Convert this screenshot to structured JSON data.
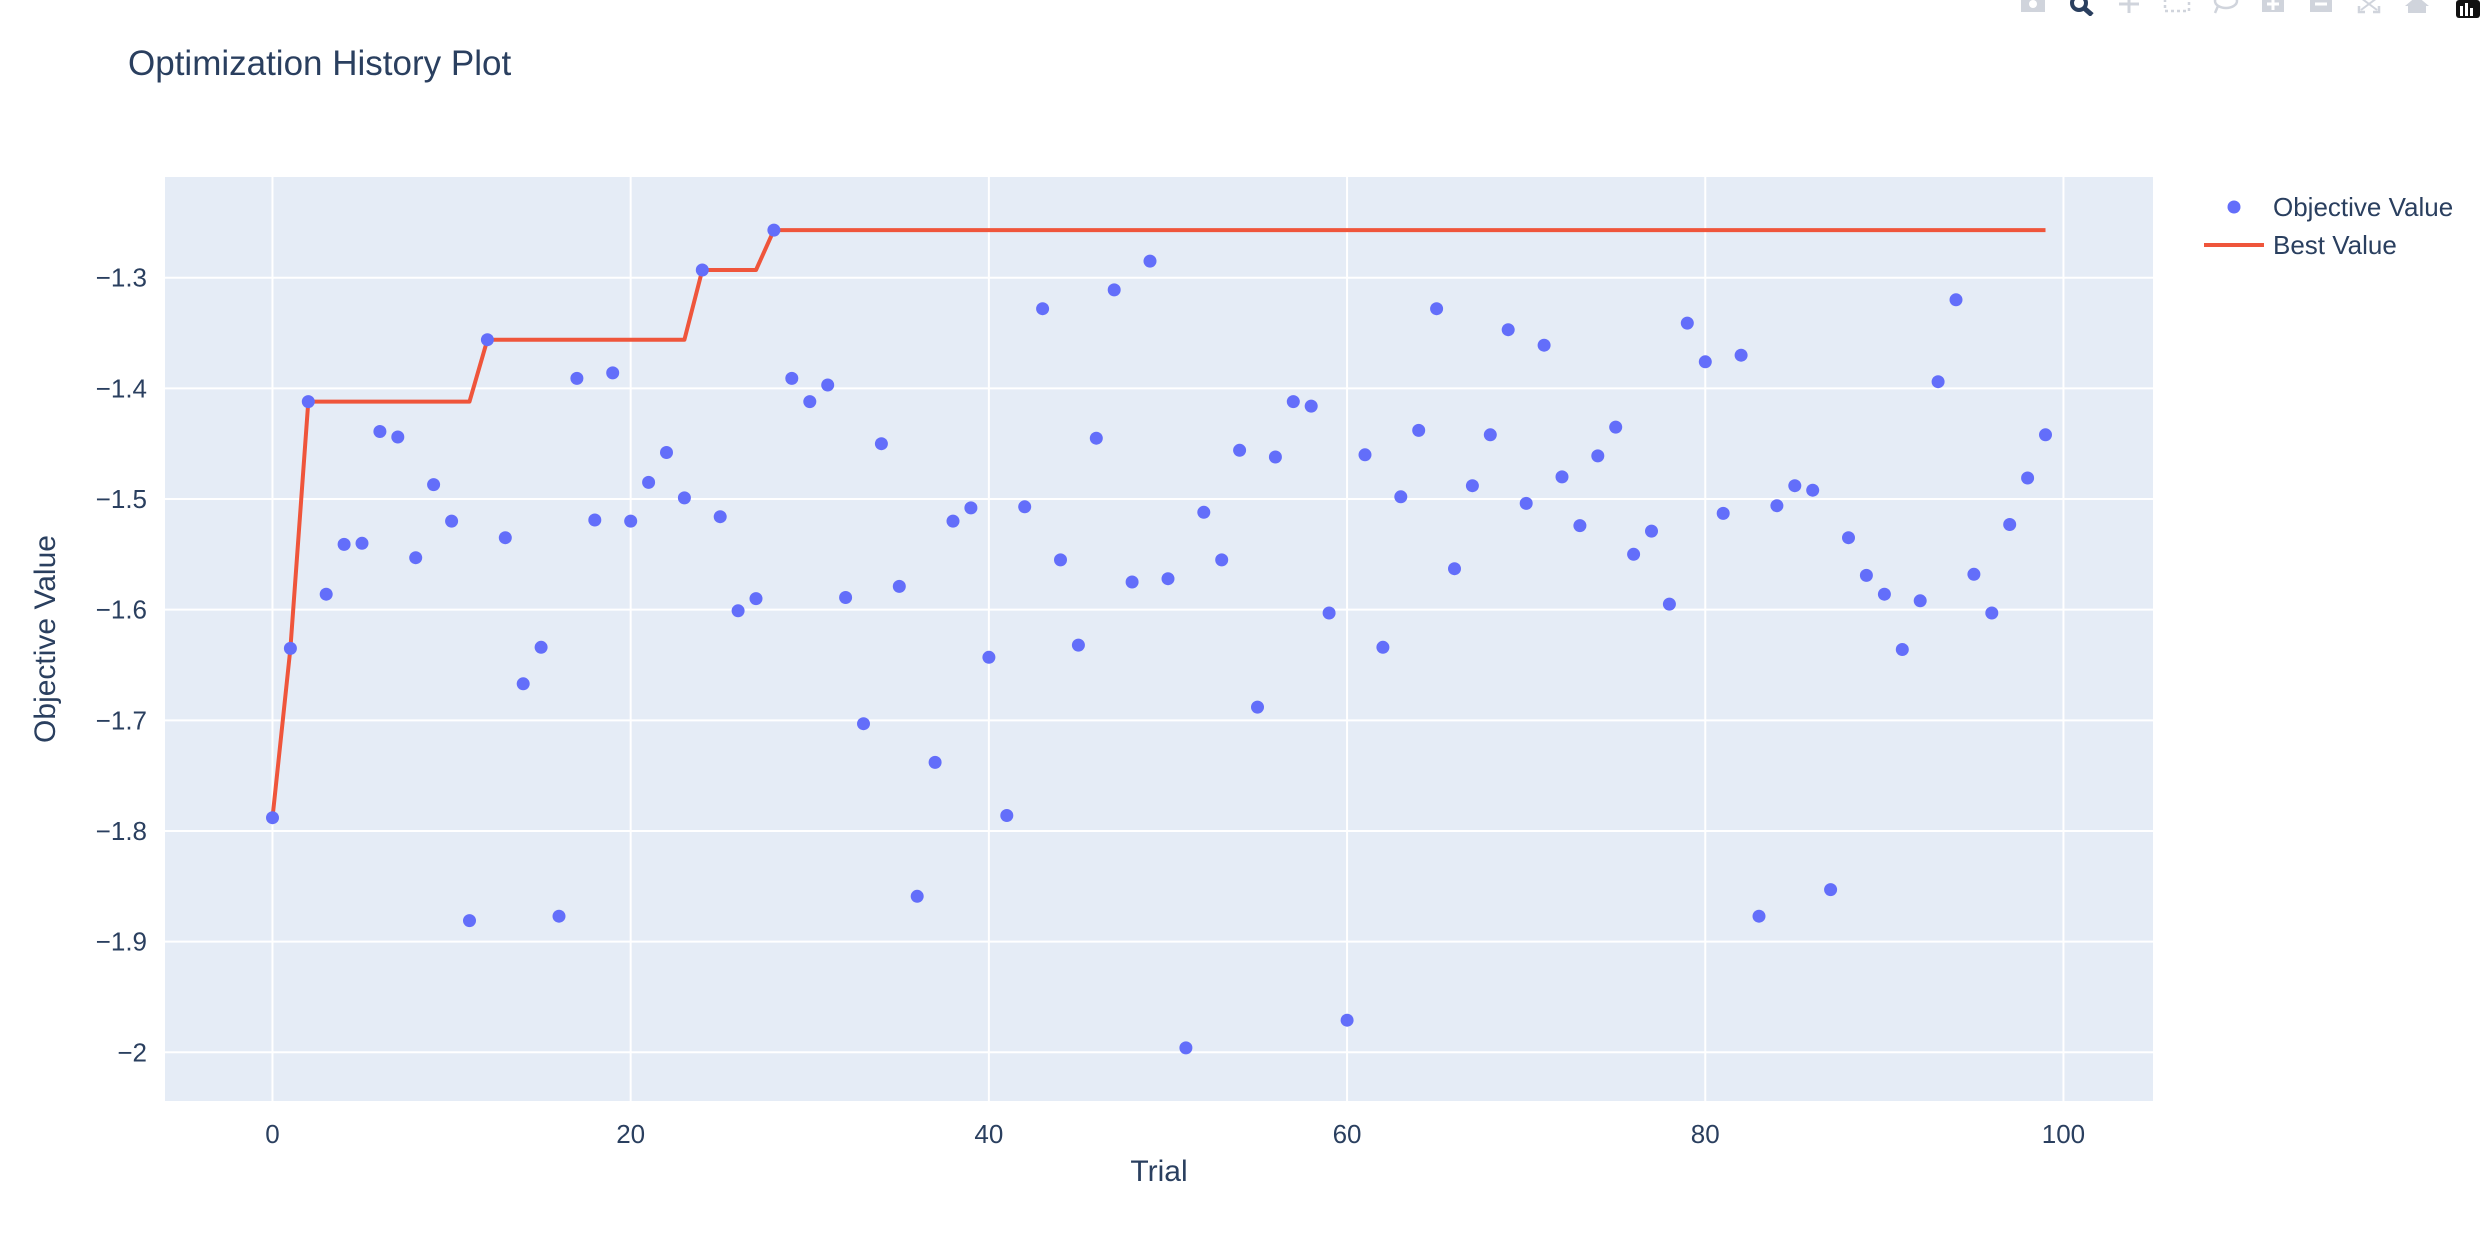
{
  "chart_data": {
    "type": "scatter",
    "title": "Optimization History Plot",
    "xlabel": "Trial",
    "ylabel": "Objective Value",
    "xlim": [
      -6,
      105
    ],
    "ylim": [
      -2.044,
      -1.209
    ],
    "xticks": [
      0,
      20,
      40,
      60,
      80,
      100
    ],
    "yticks": [
      -1.3,
      -1.4,
      -1.5,
      -1.6,
      -1.7,
      -1.8,
      -1.9,
      -2
    ],
    "ytick_labels": [
      "−1.3",
      "−1.4",
      "−1.5",
      "−1.6",
      "−1.7",
      "−1.8",
      "−1.9",
      "−2"
    ],
    "grid": true,
    "legend_position": "top-right",
    "colors": {
      "objective": "#636efa",
      "best": "#ef553b",
      "plot_bg": "#e5ecf6",
      "grid": "#ffffff"
    },
    "series": [
      {
        "name": "Objective Value",
        "mode": "markers",
        "x": [
          0,
          1,
          2,
          3,
          4,
          5,
          6,
          7,
          8,
          9,
          10,
          11,
          12,
          13,
          14,
          15,
          16,
          17,
          18,
          19,
          20,
          21,
          22,
          23,
          24,
          25,
          26,
          27,
          28,
          29,
          30,
          31,
          32,
          33,
          34,
          35,
          36,
          37,
          38,
          39,
          40,
          41,
          42,
          43,
          44,
          45,
          46,
          47,
          48,
          49,
          50,
          51,
          52,
          53,
          54,
          55,
          56,
          57,
          58,
          59,
          60,
          61,
          62,
          63,
          64,
          65,
          66,
          67,
          68,
          69,
          70,
          71,
          72,
          73,
          74,
          75,
          76,
          77,
          78,
          79,
          80,
          81,
          82,
          83,
          84,
          85,
          86,
          87,
          88,
          89,
          90,
          91,
          92,
          93,
          94,
          95,
          96,
          97,
          98,
          99
        ],
        "y": [
          -1.788,
          -1.635,
          -1.412,
          -1.586,
          -1.541,
          -1.54,
          -1.439,
          -1.444,
          -1.553,
          -1.487,
          -1.52,
          -1.881,
          -1.356,
          -1.535,
          -1.667,
          -1.634,
          -1.877,
          -1.391,
          -1.519,
          -1.386,
          -1.52,
          -1.485,
          -1.458,
          -1.499,
          -1.293,
          -1.516,
          -1.601,
          -1.59,
          -1.257,
          -1.391,
          -1.412,
          -1.397,
          -1.589,
          -1.703,
          -1.45,
          -1.579,
          -1.859,
          -1.738,
          -1.52,
          -1.508,
          -1.643,
          -1.786,
          -1.507,
          -1.328,
          -1.555,
          -1.632,
          -1.445,
          -1.311,
          -1.575,
          -1.285,
          -1.572,
          -1.996,
          -1.512,
          -1.555,
          -1.456,
          -1.688,
          -1.462,
          -1.412,
          -1.416,
          -1.603,
          -1.971,
          -1.46,
          -1.634,
          -1.498,
          -1.438,
          -1.328,
          -1.563,
          -1.488,
          -1.442,
          -1.347,
          -1.504,
          -1.361,
          -1.48,
          -1.524,
          -1.461,
          -1.435,
          -1.55,
          -1.529,
          -1.595,
          -1.341,
          -1.376,
          -1.513,
          -1.37,
          -1.877,
          -1.506,
          -1.488,
          -1.492,
          -1.853,
          -1.535,
          -1.569,
          -1.586,
          -1.636,
          -1.592,
          -1.394,
          -1.32,
          -1.568,
          -1.603,
          -1.523,
          -1.481,
          -1.442
        ]
      },
      {
        "name": "Best Value",
        "mode": "lines",
        "x": [
          0,
          1,
          2,
          3,
          4,
          5,
          6,
          7,
          8,
          9,
          10,
          11,
          12,
          13,
          14,
          15,
          16,
          17,
          18,
          19,
          20,
          21,
          22,
          23,
          24,
          25,
          26,
          27,
          28,
          29,
          30,
          31,
          32,
          33,
          34,
          35,
          36,
          37,
          38,
          39,
          40,
          41,
          42,
          43,
          44,
          45,
          46,
          47,
          48,
          49,
          50,
          51,
          52,
          53,
          54,
          55,
          56,
          57,
          58,
          59,
          60,
          61,
          62,
          63,
          64,
          65,
          66,
          67,
          68,
          69,
          70,
          71,
          72,
          73,
          74,
          75,
          76,
          77,
          78,
          79,
          80,
          81,
          82,
          83,
          84,
          85,
          86,
          87,
          88,
          89,
          90,
          91,
          92,
          93,
          94,
          95,
          96,
          97,
          98,
          99
        ],
        "y": [
          -1.788,
          -1.635,
          -1.412,
          -1.412,
          -1.412,
          -1.412,
          -1.412,
          -1.412,
          -1.412,
          -1.412,
          -1.412,
          -1.412,
          -1.356,
          -1.356,
          -1.356,
          -1.356,
          -1.356,
          -1.356,
          -1.356,
          -1.356,
          -1.356,
          -1.356,
          -1.356,
          -1.356,
          -1.293,
          -1.293,
          -1.293,
          -1.293,
          -1.257,
          -1.257,
          -1.257,
          -1.257,
          -1.257,
          -1.257,
          -1.257,
          -1.257,
          -1.257,
          -1.257,
          -1.257,
          -1.257,
          -1.257,
          -1.257,
          -1.257,
          -1.257,
          -1.257,
          -1.257,
          -1.257,
          -1.257,
          -1.257,
          -1.257,
          -1.257,
          -1.257,
          -1.257,
          -1.257,
          -1.257,
          -1.257,
          -1.257,
          -1.257,
          -1.257,
          -1.257,
          -1.257,
          -1.257,
          -1.257,
          -1.257,
          -1.257,
          -1.257,
          -1.257,
          -1.257,
          -1.257,
          -1.257,
          -1.257,
          -1.257,
          -1.257,
          -1.257,
          -1.257,
          -1.257,
          -1.257,
          -1.257,
          -1.257,
          -1.257,
          -1.257,
          -1.257,
          -1.257,
          -1.257,
          -1.257,
          -1.257,
          -1.257,
          -1.257,
          -1.257,
          -1.257,
          -1.257,
          -1.257,
          -1.257,
          -1.257,
          -1.257,
          -1.257,
          -1.257,
          -1.257,
          -1.257,
          -1.257
        ]
      }
    ]
  },
  "modebar": {
    "icons": [
      "camera-icon",
      "zoom-icon",
      "pan-icon",
      "box-select-icon",
      "lasso-select-icon",
      "zoom-in-icon",
      "zoom-out-icon",
      "autoscale-icon",
      "reset-axes-icon",
      "plotly-logo-icon"
    ]
  }
}
